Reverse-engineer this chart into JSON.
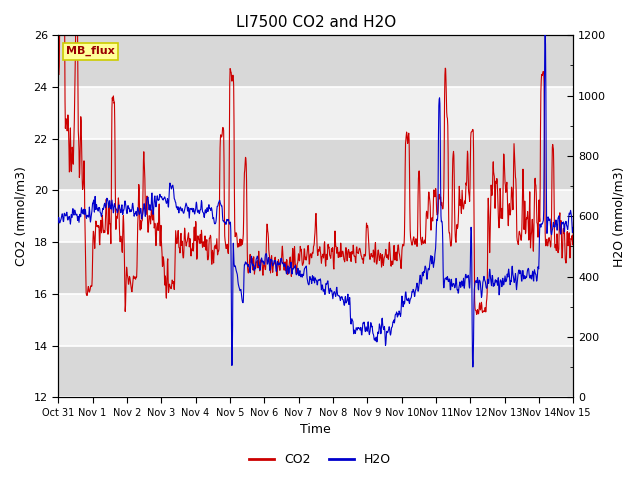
{
  "title": "LI7500 CO2 and H2O",
  "xlabel": "Time",
  "ylabel_left": "CO2 (mmol/m3)",
  "ylabel_right": "H2O (mmol/m3)",
  "ylim_left": [
    12,
    26
  ],
  "ylim_right": [
    0,
    1200
  ],
  "yticks_left": [
    12,
    14,
    16,
    18,
    20,
    22,
    24,
    26
  ],
  "yticks_right": [
    0,
    200,
    400,
    600,
    800,
    1000,
    1200
  ],
  "xtick_labels": [
    "Oct 31",
    "Nov 1",
    "Nov 2",
    "Nov 3",
    "Nov 4",
    "Nov 5",
    "Nov 6",
    "Nov 7",
    "Nov 8",
    "Nov 9",
    "Nov 10",
    "Nov 11",
    "Nov 12",
    "Nov 13",
    "Nov 14",
    "Nov 15"
  ],
  "co2_color": "#CC0000",
  "h2o_color": "#0000CC",
  "background_color": "#ffffff",
  "plot_bg_light": "#f0f0f0",
  "plot_bg_dark": "#d8d8d8",
  "grid_color": "#ffffff",
  "annotation_text": "MB_flux",
  "annotation_bg": "#ffff99",
  "annotation_border": "#cccc00",
  "linewidth": 0.8,
  "title_fontsize": 11,
  "axis_fontsize": 9,
  "tick_fontsize": 8,
  "legend_fontsize": 9
}
